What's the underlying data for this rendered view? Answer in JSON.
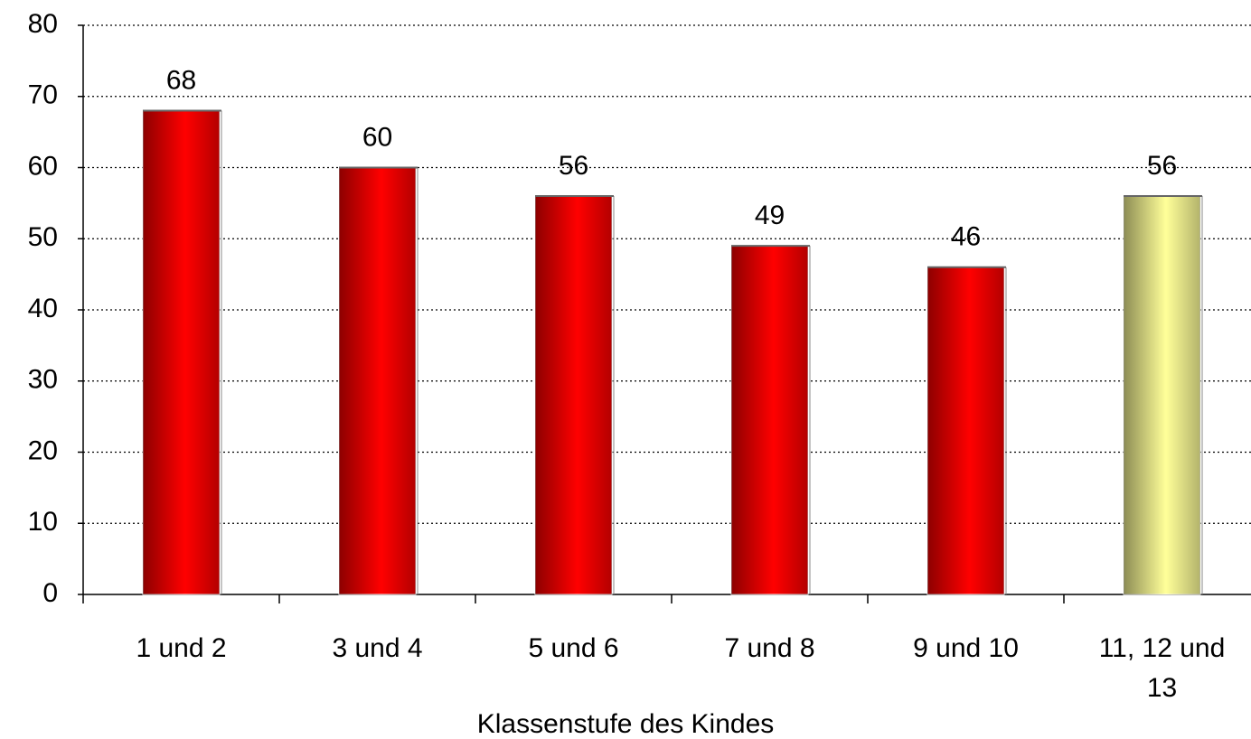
{
  "chart_data": {
    "type": "bar",
    "x_label": "Klassenstufe des Kindes",
    "categories": [
      "1 und 2",
      "3 und 4",
      "5 und 6",
      "7 und 8",
      "9 und 10",
      "11, 12 und 13"
    ],
    "values": [
      68,
      60,
      56,
      49,
      46,
      56
    ],
    "colors": [
      "#ff0000",
      "#ff0000",
      "#ff0000",
      "#ff0000",
      "#ff0000",
      "#ffff99"
    ],
    "ylim": [
      0,
      80
    ],
    "yticks": [
      0,
      10,
      20,
      30,
      40,
      50,
      60,
      70,
      80
    ],
    "grid": true
  }
}
